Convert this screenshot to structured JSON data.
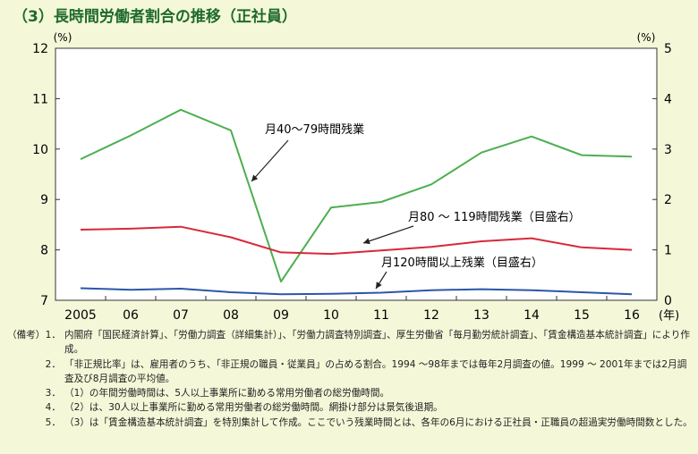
{
  "title": "（3）長時間労働者割合の推移（正社員）",
  "chart_data": {
    "type": "line",
    "categories": [
      "2005",
      "06",
      "07",
      "08",
      "09",
      "10",
      "11",
      "12",
      "13",
      "14",
      "15",
      "16"
    ],
    "x_unit": "(年)",
    "y_left": {
      "unit": "(%)",
      "range": [
        7,
        12
      ],
      "ticks": [
        "7",
        "8",
        "9",
        "10",
        "11",
        "12"
      ]
    },
    "y_right": {
      "unit": "(%)",
      "range": [
        0,
        5
      ],
      "ticks": [
        "0",
        "1",
        "2",
        "3",
        "4",
        "5"
      ]
    },
    "grid": false,
    "series": [
      {
        "name": "月40～79時間残業",
        "axis": "left",
        "color": "#4caf50",
        "values": [
          9.8,
          10.27,
          10.78,
          10.37,
          7.37,
          8.84,
          8.95,
          9.3,
          9.93,
          10.25,
          9.88,
          9.85
        ]
      },
      {
        "name": "月80 ～ 119時間残業（目盛右）",
        "axis": "right",
        "color": "#d9283a",
        "values": [
          1.4,
          1.42,
          1.46,
          1.25,
          0.95,
          0.92,
          0.99,
          1.06,
          1.17,
          1.23,
          1.05,
          1.0
        ]
      },
      {
        "name": "月120時間以上残業（目盛右）",
        "axis": "right",
        "color": "#2b56a8",
        "values": [
          0.24,
          0.21,
          0.23,
          0.16,
          0.12,
          0.13,
          0.15,
          0.2,
          0.22,
          0.2,
          0.16,
          0.12
        ]
      }
    ]
  },
  "notes": {
    "heading": "（備考）",
    "items": [
      {
        "num": "1．",
        "text": "内閣府「国民経済計算」、「労働力調査（詳細集計）」、「労働力調査特別調査」、厚生労働省「毎月勤労統計調査」、「賃金構造基本統計調査」により作成。"
      },
      {
        "num": "2．",
        "text": "「非正規比率」は、雇用者のうち、「非正規の職員・従業員」の占める割合。1994 ～98年までは毎年2月調査の値。1999 ～ 2001年までは2月調査及び8月調査の平均値。"
      },
      {
        "num": "3．",
        "text": "（1）の年間労働時間は、5人以上事業所に勤める常用労働者の総労働時間。"
      },
      {
        "num": "4．",
        "text": "（2）は、30人以上事業所に勤める常用労働者の総労働時間。網掛け部分は景気後退期。"
      },
      {
        "num": "5．",
        "text": "（3）は「賃金構造基本統計調査」を特別集計して作成。ここでいう残業時間とは、各年の6月における正社員・正職員の超過実労働時間数とした。"
      }
    ]
  }
}
